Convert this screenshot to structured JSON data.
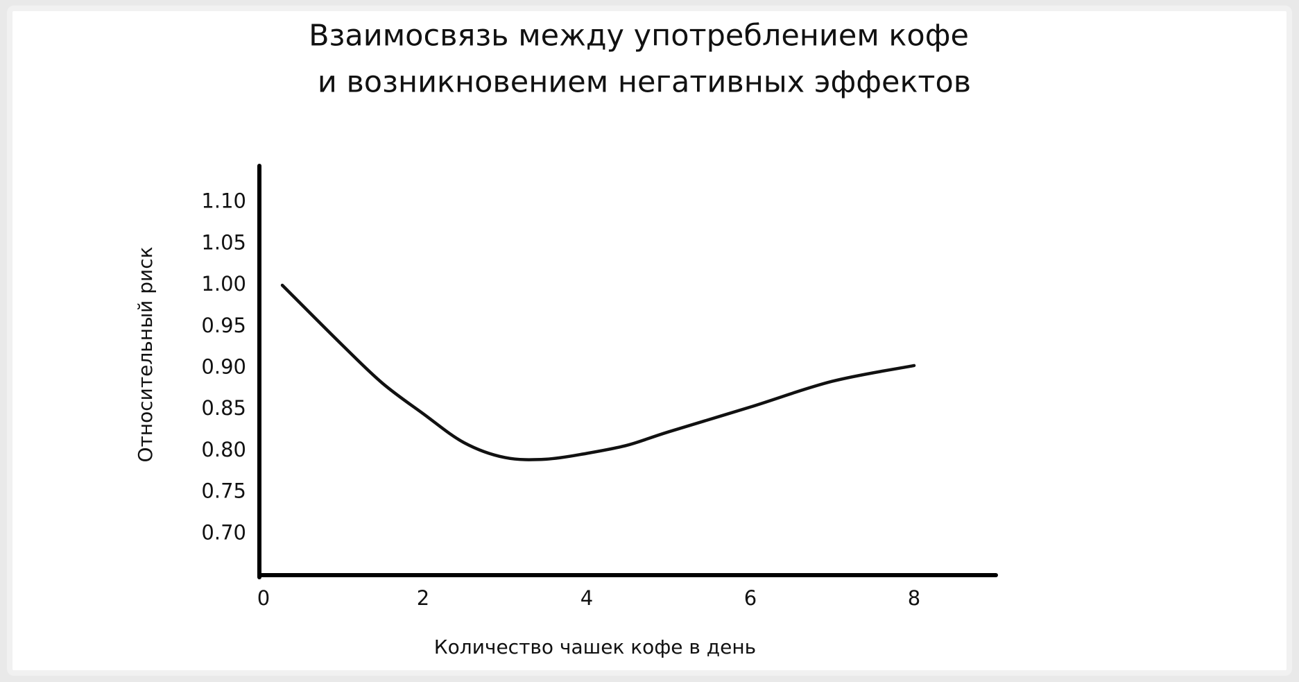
{
  "chart_data": {
    "type": "line",
    "title": [
      "Взаимосвязь между употреблением кофе",
      "и возникновением негативных эффектов"
    ],
    "x_label": "Количество чашек кофе в день",
    "y_label": "Относительный риск",
    "series": [
      {
        "name": null,
        "color": "#111111",
        "x": [
          0.28,
          1,
          1.5,
          2,
          2.5,
          3,
          3.5,
          4,
          4.5,
          5,
          6,
          7,
          8
        ],
        "values": [
          1.0,
          0.929,
          0.882,
          0.845,
          0.81,
          0.792,
          0.79,
          0.797,
          0.807,
          0.823,
          0.853,
          0.884,
          0.903
        ]
      }
    ],
    "xlim": [
      0,
      9
    ],
    "xticks": [
      0,
      2,
      4,
      6,
      8
    ],
    "ylim": [
      0.65,
      1.15
    ],
    "yticks": [
      {
        "value": 1.1,
        "label": "1.10"
      },
      1.05,
      {
        "value": 1.0,
        "label": "1.00"
      },
      0.95,
      {
        "value": 0.9,
        "label": "0.90"
      },
      0.85,
      {
        "value": 0.8,
        "label": "0.80"
      },
      0.75,
      {
        "value": 0.7,
        "label": "0.70"
      }
    ],
    "grid": false
  }
}
